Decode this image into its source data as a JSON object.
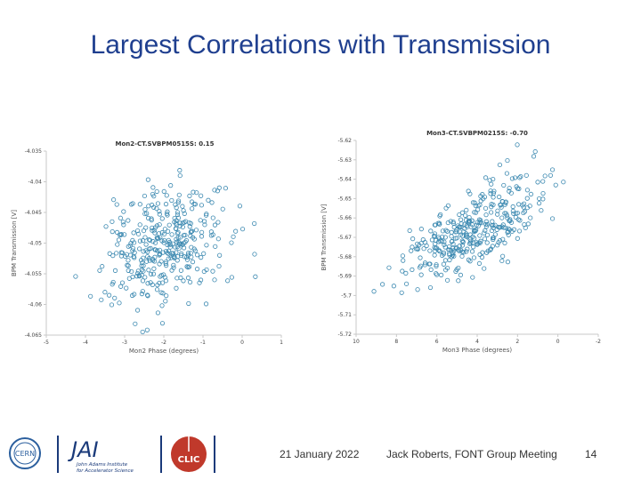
{
  "slide": {
    "title": "Largest Correlations with Transmission"
  },
  "footer": {
    "date": "21 January 2022",
    "author": "Jack Roberts, FONT Group Meeting",
    "page": "14"
  },
  "logos": {
    "cern": "CERN",
    "jai_main": "JAI",
    "jai_sub1": "John Adams Institute",
    "jai_sub2": "for Accelerator Science",
    "clic": "CLIC"
  },
  "colors": {
    "title": "#1f3f8f",
    "points": "#3a88b0",
    "clic_red": "#c0392b"
  },
  "chart_data": [
    {
      "type": "scatter",
      "title": "Mon2-CT.SVBPM0515S: 0.15",
      "xlabel": "Mon2 Phase (degrees)",
      "ylabel": "BPM Transmission [V]",
      "xlim": [
        -5,
        1
      ],
      "ylim": [
        -4.065,
        -4.035
      ],
      "xticks": [
        "-5",
        "-4",
        "-3",
        "-2",
        "-1",
        "0",
        "1"
      ],
      "yticks": [
        "-4.035",
        "-4.04",
        "-4.045",
        "-4.05",
        "-4.055",
        "-4.06",
        "-4.065"
      ],
      "correlation": 0.15,
      "n_points": 360,
      "center": [
        -2.0,
        -4.0505
      ],
      "spread": [
        0.75,
        0.0048
      ]
    },
    {
      "type": "scatter",
      "title": "Mon3-CT.SVBPM0215S: -0.70",
      "xlabel": "Mon3 Phase (degrees)",
      "ylabel": "BPM Transmission [V]",
      "xlim": [
        10,
        -2
      ],
      "ylim": [
        -5.72,
        -5.62
      ],
      "xticks": [
        "10",
        "8",
        "6",
        "4",
        "2",
        "0",
        "-2"
      ],
      "yticks": [
        "-5.62",
        "-5.63",
        "-5.64",
        "-5.65",
        "-5.66",
        "-5.67",
        "-5.68",
        "-5.69",
        "-5.7",
        "-5.71",
        "-5.72"
      ],
      "correlation": -0.7,
      "n_points": 360,
      "center": [
        4.2,
        -5.666
      ],
      "spread": [
        1.8,
        0.014
      ]
    }
  ]
}
